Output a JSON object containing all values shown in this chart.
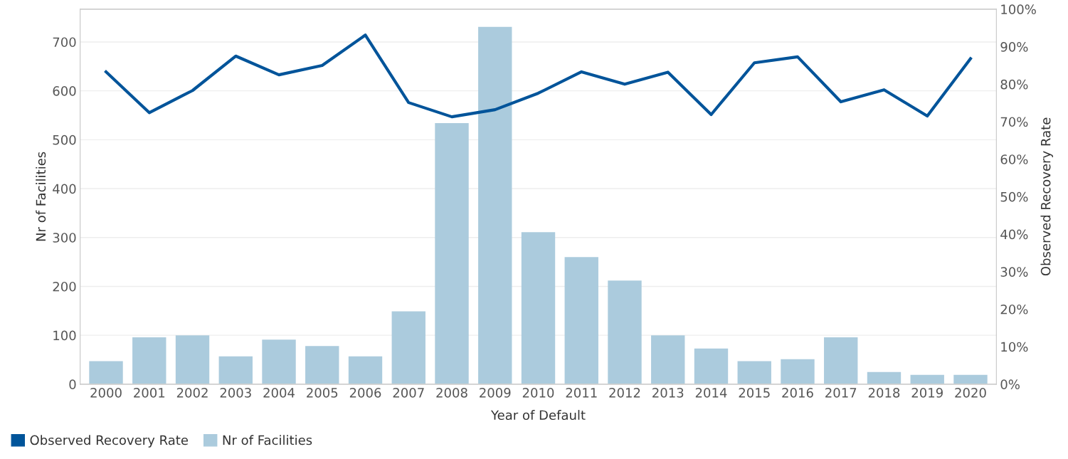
{
  "chart_data": {
    "type": "bar",
    "xlabel": "Year of Default",
    "ylabel": "Nr of Facilities",
    "y2label": "Observed Recovery Rate",
    "categories": [
      "2000",
      "2001",
      "2002",
      "2003",
      "2004",
      "2005",
      "2006",
      "2007",
      "2008",
      "2009",
      "2010",
      "2011",
      "2012",
      "2013",
      "2014",
      "2015",
      "2016",
      "2017",
      "2018",
      "2019",
      "2020"
    ],
    "series": [
      {
        "name": "Observed Recovery Rate",
        "type": "line",
        "axis": "y2",
        "color": "#00549a",
        "values": [
          83.3,
          72.4,
          78.3,
          87.5,
          82.5,
          85.0,
          93.1,
          75.1,
          71.3,
          73.2,
          77.6,
          83.3,
          80.0,
          83.2,
          71.9,
          85.7,
          87.3,
          75.3,
          78.5,
          71.5,
          86.8
        ]
      },
      {
        "name": "Nr of Facilities",
        "color": "#abcbdd",
        "values": [
          47,
          96,
          100,
          57,
          91,
          78,
          57,
          149,
          534,
          731,
          311,
          260,
          212,
          100,
          73,
          47,
          51,
          96,
          25,
          19,
          19
        ]
      }
    ],
    "ylim": [
      0,
      767
    ],
    "yticks": [
      0,
      100,
      200,
      300,
      400,
      500,
      600,
      700
    ],
    "y2lim": [
      0,
      100
    ],
    "y2ticks": [
      {
        "value": 0,
        "label": "0%"
      },
      {
        "value": 10,
        "label": "10%"
      },
      {
        "value": 20,
        "label": "20%"
      },
      {
        "value": 30,
        "label": "30%"
      },
      {
        "value": 40,
        "label": "40%"
      },
      {
        "value": 50,
        "label": "50%"
      },
      {
        "value": 60,
        "label": "60%"
      },
      {
        "value": 70,
        "label": "70%"
      },
      {
        "value": 80,
        "label": "80%"
      },
      {
        "value": 90,
        "label": "90%"
      },
      {
        "value": 100,
        "label": "100%"
      }
    ],
    "grid": "y",
    "legend": "bottom left",
    "line_style": "solid",
    "marker": "none"
  }
}
